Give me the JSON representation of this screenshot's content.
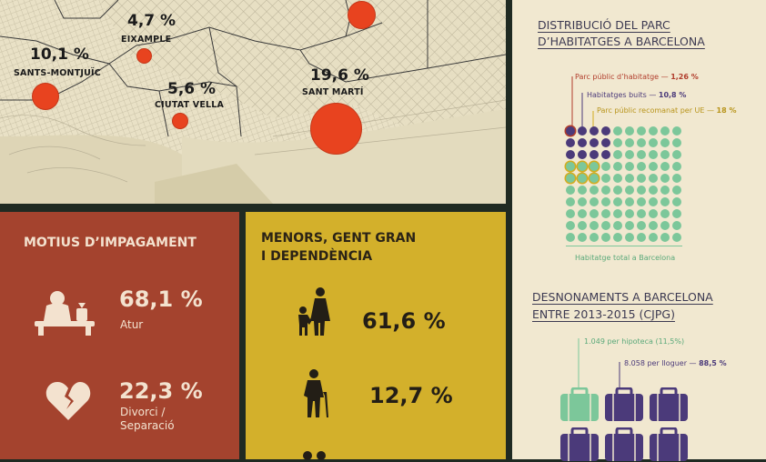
{
  "map": {
    "districts": [
      {
        "name": "SANTS-MONTJUÏC",
        "pct": "10,1 %"
      },
      {
        "name": "EIXAMPLE",
        "pct": "4,7 %"
      },
      {
        "name": "CIUTAT VELLA",
        "pct": "5,6 %"
      },
      {
        "name": "SANT MARTÍ",
        "pct": "19,6 %"
      }
    ]
  },
  "impagament": {
    "title": "MOTIUS D’IMPAGAMENT",
    "items": [
      {
        "pct": "68,1 %",
        "label": "Atur",
        "icon": "unemployed-person-icon"
      },
      {
        "pct": "22,3 %",
        "label": "Divorci / Separació",
        "icon": "broken-heart-icon"
      }
    ]
  },
  "menors": {
    "title_line1": "MENORS, GENT GRAN",
    "title_line2": "I DEPENDÈNCIA",
    "items": [
      {
        "pct": "61,6 %",
        "icon": "adult-with-child-icon"
      },
      {
        "pct": "12,7 %",
        "icon": "elderly-person-icon"
      }
    ]
  },
  "parc": {
    "title_line1": "DISTRIBUCIÓ DEL PARC",
    "title_line2": "D’HABITATGES A BARCELONA",
    "legend": [
      {
        "label": "Parc públic d’habitatge",
        "value": "1,26 %",
        "color": "#b13d2c"
      },
      {
        "label": "Habitatges buits",
        "value": "10,8 %",
        "color": "#4b3a7a"
      },
      {
        "label": "Parc públic recomanat per UE",
        "value": "18 %",
        "color": "#d3ac1f"
      }
    ],
    "footer": "Habitatge total a Barcelona",
    "colors": {
      "total": "#7cc79a",
      "buits": "#4b3a7a",
      "public": "#b13d2c",
      "ue": "#d3ac1f"
    }
  },
  "desnonaments": {
    "title_line1": "DESNONAMENTS A BARCELONA",
    "title_line2": "ENTRE 2013-2015 (CJPG)",
    "hipoteca_label": "1.049 per hipoteca (11,5%)",
    "lloguer_label": "8.058 per lloguer",
    "lloguer_value": "88,5 %",
    "colors": {
      "hipoteca": "#7cc79a",
      "lloguer": "#4b3a7a"
    }
  }
}
